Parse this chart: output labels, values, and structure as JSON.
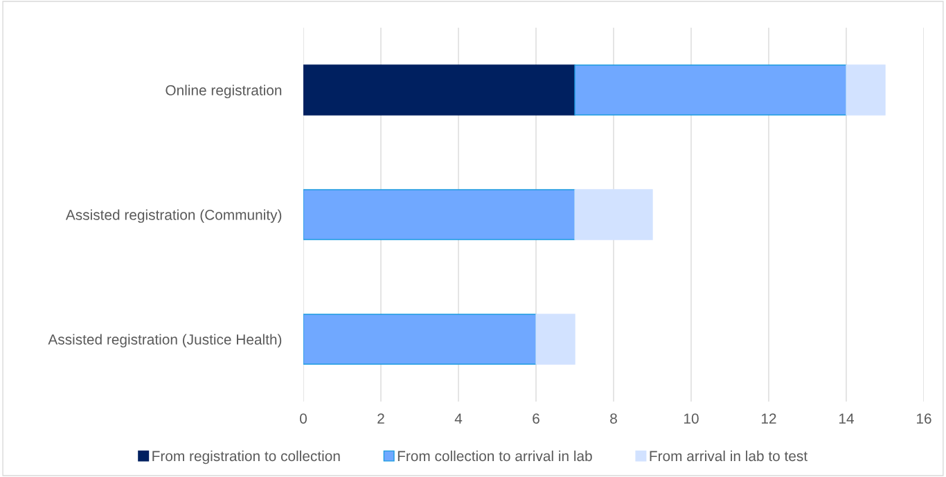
{
  "chart_data": {
    "type": "bar",
    "orientation": "horizontal",
    "stacked": true,
    "categories": [
      "Online registration",
      "Assisted registration (Community)",
      "Assisted registration (Justice Health)"
    ],
    "series": [
      {
        "name": "From registration to collection",
        "color": "#002060",
        "values": [
          7,
          0,
          0
        ]
      },
      {
        "name": "From collection to arrival in lab",
        "color": "#70a8ff",
        "values": [
          7,
          7,
          6
        ]
      },
      {
        "name": "From arrival in lab to test",
        "color": "#d2e2ff",
        "values": [
          1,
          2,
          1
        ]
      }
    ],
    "xlim": [
      0,
      16
    ],
    "xticks": [
      0,
      2,
      4,
      6,
      8,
      10,
      12,
      14,
      16
    ],
    "grid": "x",
    "legend": "bottom"
  }
}
